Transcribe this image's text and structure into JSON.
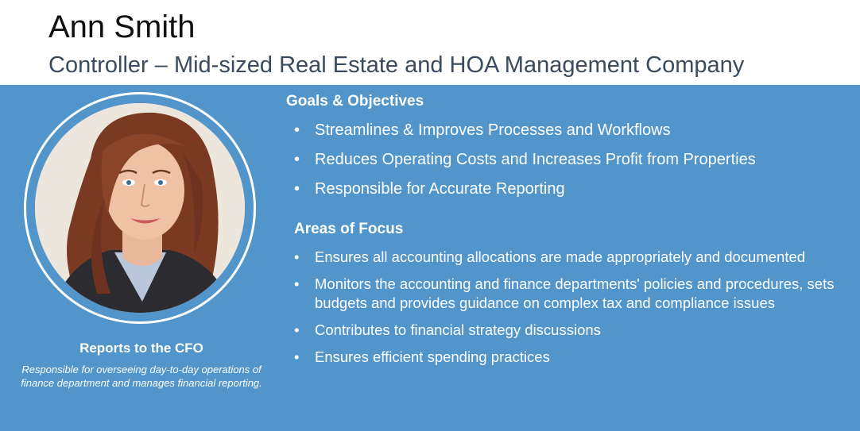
{
  "header": {
    "name": "Ann Smith",
    "subtitle": "Controller – Mid-sized Real Estate and HOA Management Company"
  },
  "profile": {
    "photo_description_icon": "portrait-photo",
    "reports_to": "Reports to the CFO",
    "description": "Responsible for overseeing day-to-day operations of finance department and manages financial reporting."
  },
  "goals": {
    "title": "Goals & Objectives",
    "items": [
      "Streamlines & Improves Processes and Workflows",
      "Reduces Operating Costs and Increases Profit from Properties",
      "Responsible for Accurate Reporting"
    ]
  },
  "focus": {
    "title": "Areas of Focus",
    "items": [
      "Ensures all accounting allocations are made appropriately and documented",
      "Monitors the accounting and finance departments' policies and procedures, sets budgets and provides guidance on complex tax and compliance issues",
      "Contributes to financial strategy discussions",
      "Ensures efficient spending practices"
    ]
  },
  "colors": {
    "panel": "#5195cb",
    "subtitle": "#3a4a5f",
    "text_on_panel": "#ffffff"
  }
}
